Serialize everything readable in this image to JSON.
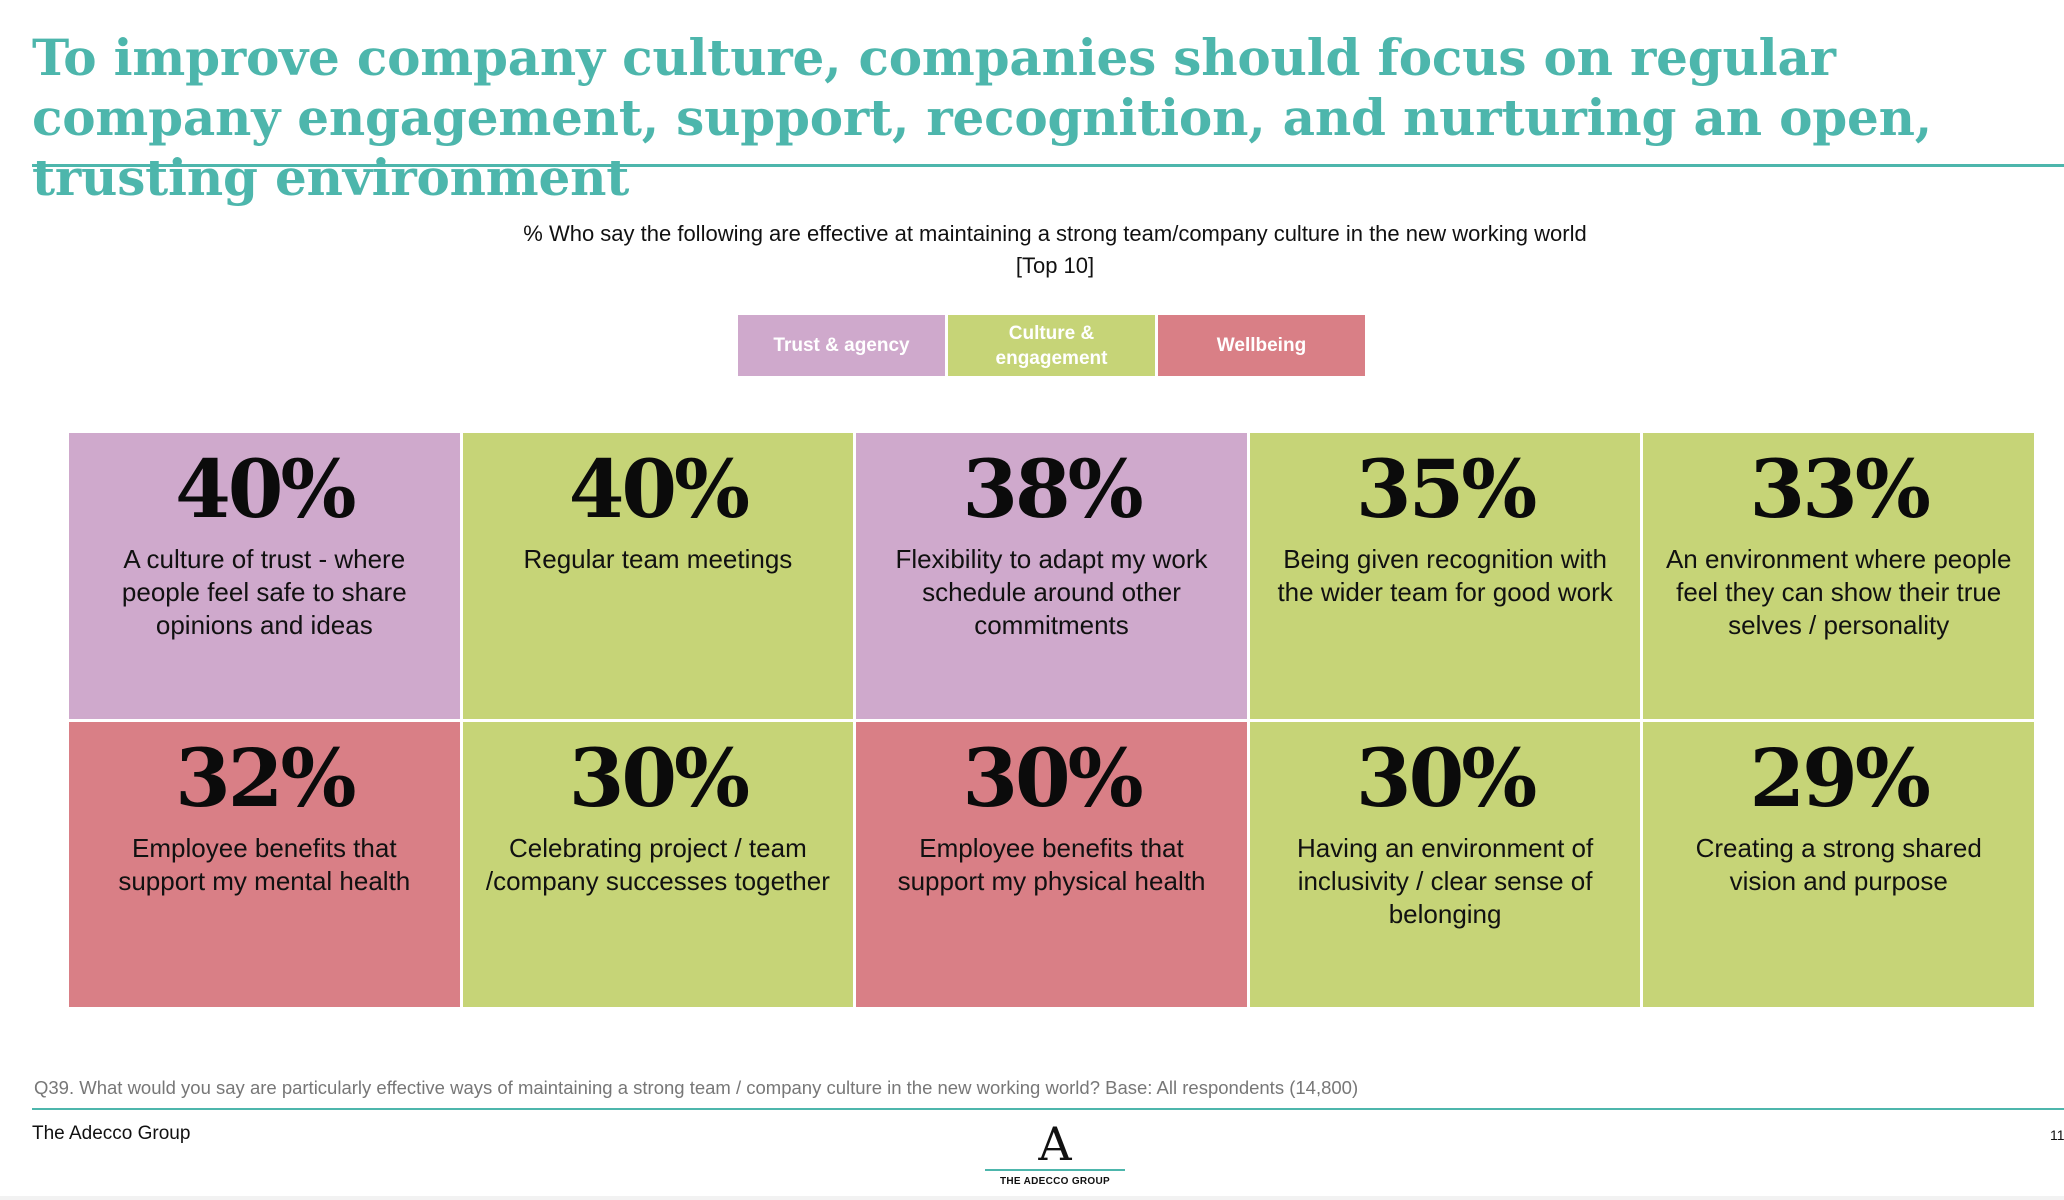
{
  "title": "To improve company culture, companies should focus on regular company engagement, support, recognition, and nurturing an open, trusting environment",
  "subtitle": {
    "line1": "% Who say the following are effective at maintaining a strong team/company culture in the new working world",
    "line2": "[Top 10]"
  },
  "colors": {
    "accent": "#4db6ac",
    "trust": "#cfa9cc",
    "culture": "#c6d477",
    "wellbeing": "#d97f86"
  },
  "legend": [
    {
      "label": "Trust & agency",
      "color": "#cfa9cc"
    },
    {
      "label": "Culture & engagement",
      "color": "#c6d477"
    },
    {
      "label": "Wellbeing",
      "color": "#d97f86"
    }
  ],
  "cells": [
    {
      "pct": "40%",
      "label": "A culture of trust - where people feel safe to share opinions and ideas",
      "color": "#cfa9cc"
    },
    {
      "pct": "40%",
      "label": "Regular team meetings",
      "color": "#c6d477"
    },
    {
      "pct": "38%",
      "label": "Flexibility to adapt my work schedule around other commitments",
      "color": "#cfa9cc"
    },
    {
      "pct": "35%",
      "label": "Being given recognition with the wider team for good work",
      "color": "#c6d477"
    },
    {
      "pct": "33%",
      "label": "An environment where people feel they can show their true selves / personality",
      "color": "#c6d477"
    },
    {
      "pct": "32%",
      "label": "Employee benefits that support my mental health",
      "color": "#d97f86"
    },
    {
      "pct": "30%",
      "label": "Celebrating project / team /company successes together",
      "color": "#c6d477"
    },
    {
      "pct": "30%",
      "label": "Employee benefits that support my physical health",
      "color": "#d97f86"
    },
    {
      "pct": "30%",
      "label": "Having an environment of inclusivity / clear sense of belonging",
      "color": "#c6d477"
    },
    {
      "pct": "29%",
      "label": "Creating a strong shared vision and purpose",
      "color": "#c6d477"
    }
  ],
  "footnote": "Q39. What would you say are particularly effective ways of maintaining a strong team / company culture in the new working world? Base: All respondents (14,800)",
  "footer": {
    "company": "The Adecco Group",
    "page": "11",
    "logo_letter": "A",
    "logo_text": "THE ADECCO GROUP"
  }
}
